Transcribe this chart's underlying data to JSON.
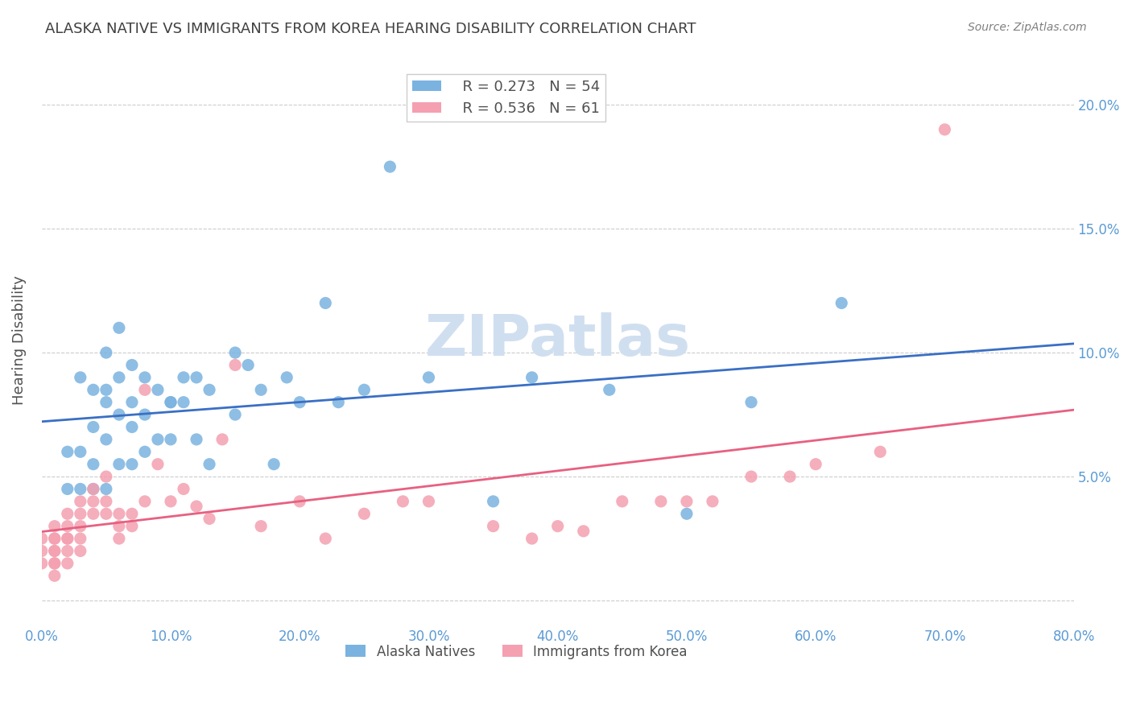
{
  "title": "ALASKA NATIVE VS IMMIGRANTS FROM KOREA HEARING DISABILITY CORRELATION CHART",
  "source": "Source: ZipAtlas.com",
  "ylabel": "Hearing Disability",
  "ytick_labels": [
    "",
    "5.0%",
    "10.0%",
    "15.0%",
    "20.0%"
  ],
  "ytick_values": [
    0,
    0.05,
    0.1,
    0.15,
    0.2
  ],
  "xtick_values": [
    0.0,
    0.1,
    0.2,
    0.3,
    0.4,
    0.5,
    0.6,
    0.7,
    0.8
  ],
  "xlim": [
    0.0,
    0.8
  ],
  "ylim": [
    -0.01,
    0.22
  ],
  "legend_r1": "R = 0.273",
  "legend_n1": "N = 54",
  "legend_r2": "R = 0.536",
  "legend_n2": "N = 61",
  "blue_color": "#7ab3e0",
  "pink_color": "#f4a0b0",
  "blue_line_color": "#3a6fc4",
  "pink_line_color": "#e86080",
  "tick_label_color": "#5b9bd5",
  "title_color": "#404040",
  "source_color": "#808080",
  "watermark_color": "#d0dff0",
  "alaska_x": [
    0.02,
    0.02,
    0.03,
    0.03,
    0.03,
    0.04,
    0.04,
    0.04,
    0.04,
    0.05,
    0.05,
    0.05,
    0.05,
    0.05,
    0.06,
    0.06,
    0.06,
    0.06,
    0.07,
    0.07,
    0.07,
    0.07,
    0.08,
    0.08,
    0.08,
    0.09,
    0.09,
    0.1,
    0.1,
    0.1,
    0.11,
    0.11,
    0.12,
    0.12,
    0.13,
    0.13,
    0.15,
    0.15,
    0.16,
    0.17,
    0.18,
    0.19,
    0.2,
    0.22,
    0.23,
    0.25,
    0.27,
    0.3,
    0.35,
    0.38,
    0.44,
    0.5,
    0.55,
    0.62
  ],
  "alaska_y": [
    0.06,
    0.045,
    0.09,
    0.06,
    0.045,
    0.085,
    0.07,
    0.055,
    0.045,
    0.1,
    0.085,
    0.08,
    0.065,
    0.045,
    0.11,
    0.09,
    0.075,
    0.055,
    0.095,
    0.08,
    0.07,
    0.055,
    0.09,
    0.075,
    0.06,
    0.085,
    0.065,
    0.08,
    0.08,
    0.065,
    0.09,
    0.08,
    0.09,
    0.065,
    0.055,
    0.085,
    0.1,
    0.075,
    0.095,
    0.085,
    0.055,
    0.09,
    0.08,
    0.12,
    0.08,
    0.085,
    0.175,
    0.09,
    0.04,
    0.09,
    0.085,
    0.035,
    0.08,
    0.12
  ],
  "korea_x": [
    0.0,
    0.0,
    0.0,
    0.01,
    0.01,
    0.01,
    0.01,
    0.01,
    0.01,
    0.01,
    0.01,
    0.02,
    0.02,
    0.02,
    0.02,
    0.02,
    0.02,
    0.03,
    0.03,
    0.03,
    0.03,
    0.03,
    0.04,
    0.04,
    0.04,
    0.05,
    0.05,
    0.05,
    0.06,
    0.06,
    0.06,
    0.07,
    0.07,
    0.08,
    0.08,
    0.09,
    0.1,
    0.11,
    0.12,
    0.13,
    0.14,
    0.15,
    0.17,
    0.2,
    0.22,
    0.25,
    0.28,
    0.3,
    0.35,
    0.38,
    0.4,
    0.42,
    0.45,
    0.48,
    0.5,
    0.52,
    0.55,
    0.58,
    0.6,
    0.65,
    0.7
  ],
  "korea_y": [
    0.025,
    0.02,
    0.015,
    0.03,
    0.025,
    0.025,
    0.02,
    0.02,
    0.015,
    0.015,
    0.01,
    0.035,
    0.03,
    0.025,
    0.025,
    0.02,
    0.015,
    0.04,
    0.035,
    0.03,
    0.025,
    0.02,
    0.045,
    0.04,
    0.035,
    0.05,
    0.04,
    0.035,
    0.035,
    0.03,
    0.025,
    0.035,
    0.03,
    0.085,
    0.04,
    0.055,
    0.04,
    0.045,
    0.038,
    0.033,
    0.065,
    0.095,
    0.03,
    0.04,
    0.025,
    0.035,
    0.04,
    0.04,
    0.03,
    0.025,
    0.03,
    0.028,
    0.04,
    0.04,
    0.04,
    0.04,
    0.05,
    0.05,
    0.055,
    0.06,
    0.19
  ]
}
